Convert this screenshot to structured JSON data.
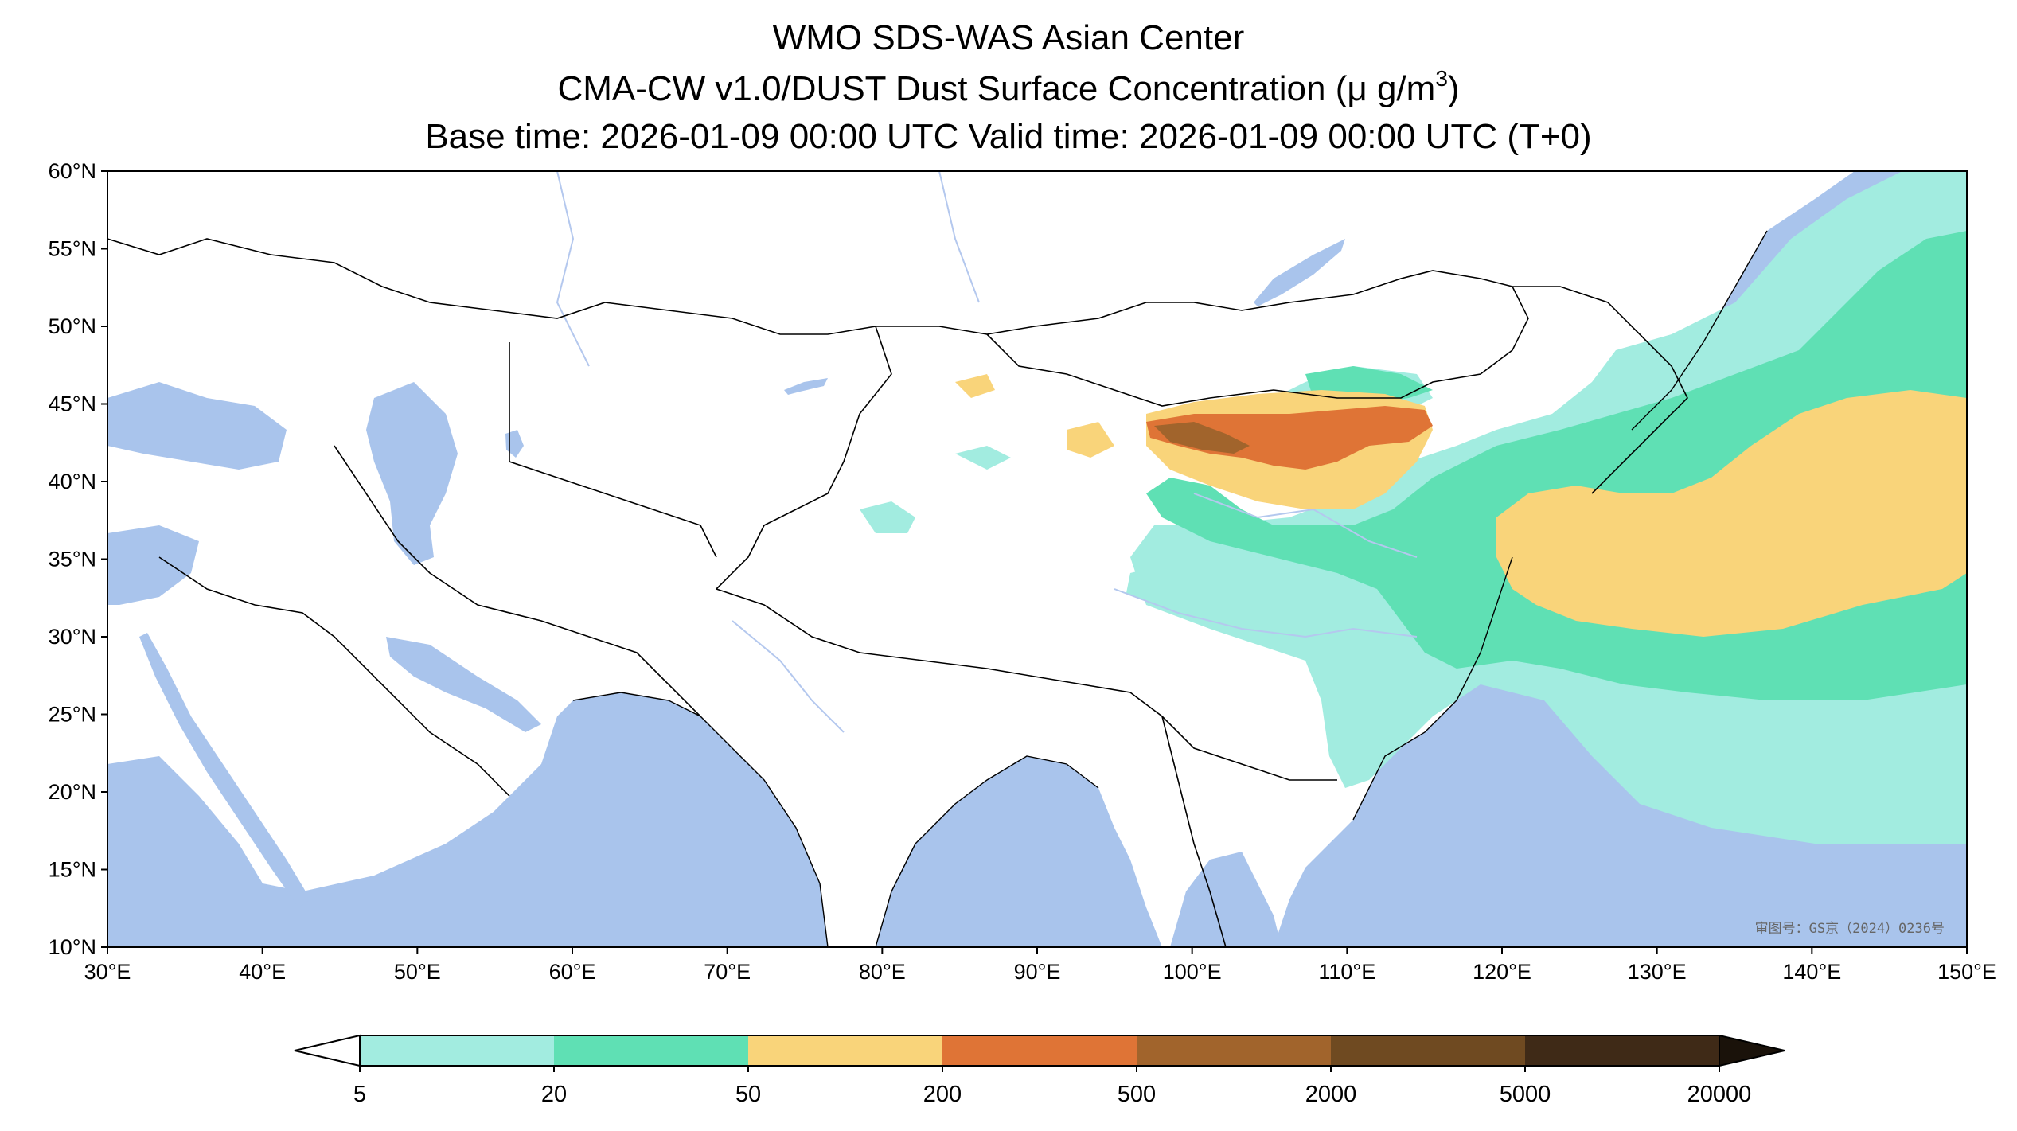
{
  "title": {
    "line1": "WMO SDS-WAS Asian Center",
    "line2_prefix": "CMA-CW v1.0/DUST Dust Surface Concentration (",
    "line2_unit": "μ g/m",
    "line2_sup": "3",
    "line2_suffix": ")",
    "line3": "Base time: 2026-01-09 00:00 UTC Valid time: 2026-01-09 00:00 UTC (T+0)"
  },
  "map": {
    "lon_range": [
      30,
      150
    ],
    "lat_range": [
      10,
      60
    ],
    "lon_ticks": [
      "30°E",
      "40°E",
      "50°E",
      "60°E",
      "70°E",
      "80°E",
      "90°E",
      "100°E",
      "110°E",
      "120°E",
      "130°E",
      "140°E",
      "150°E"
    ],
    "lat_ticks": [
      "60°N",
      "55°N",
      "50°N",
      "45°N",
      "40°N",
      "35°N",
      "30°N",
      "25°N",
      "20°N",
      "15°N",
      "10°N"
    ],
    "watermark": "审图号：GS京（2024）0236号",
    "ocean_color": "#a9c4ec"
  },
  "colorbar": {
    "levels": [
      "5",
      "20",
      "50",
      "200",
      "500",
      "2000",
      "5000",
      "20000"
    ],
    "colors": [
      "#a2ece0",
      "#5fe0b4",
      "#f9d47a",
      "#df7436",
      "#a1642c",
      "#6f4a21",
      "#3f2a17"
    ],
    "under_color": "#ffffff",
    "over_color": "#1a120a"
  }
}
